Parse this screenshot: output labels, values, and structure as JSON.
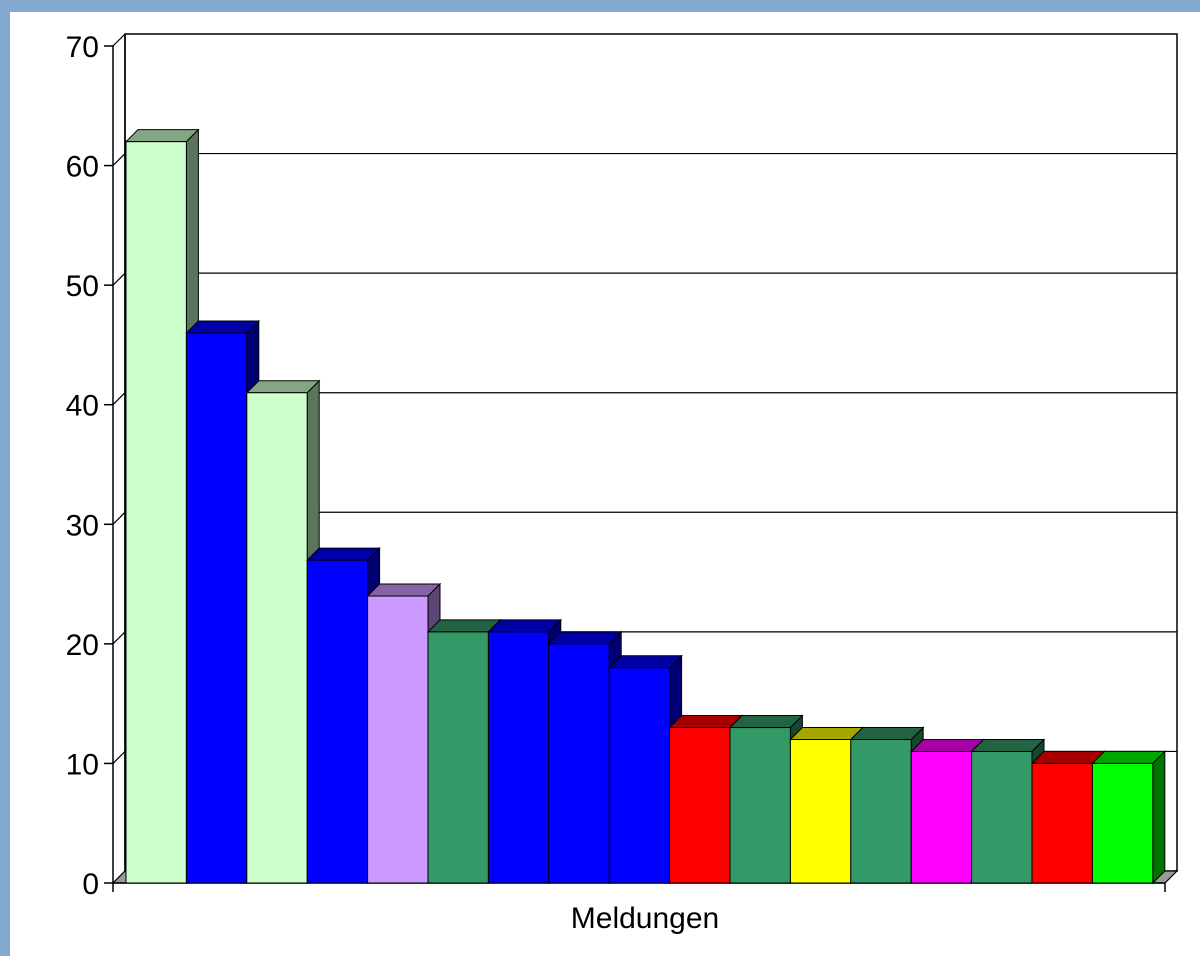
{
  "chart_data": {
    "type": "bar",
    "style": "3d-columns",
    "xlabel": "Meldungen",
    "ylabel": "",
    "ylim": [
      0,
      70
    ],
    "yticks": [
      0,
      10,
      20,
      30,
      40,
      50,
      60,
      70
    ],
    "grid": true,
    "legend": "none",
    "values": [
      62,
      46,
      41,
      27,
      24,
      21,
      21,
      20,
      18,
      13,
      13,
      12,
      12,
      11,
      11,
      10,
      10
    ],
    "colors": [
      "#ccffcc",
      "#0000ff",
      "#ccffcc",
      "#0000ff",
      "#cc99ff",
      "#339966",
      "#0000ff",
      "#0000ff",
      "#0000ff",
      "#ff0000",
      "#339966",
      "#ffff00",
      "#339966",
      "#ff00ff",
      "#339966",
      "#ff0000",
      "#00ff00"
    ]
  }
}
